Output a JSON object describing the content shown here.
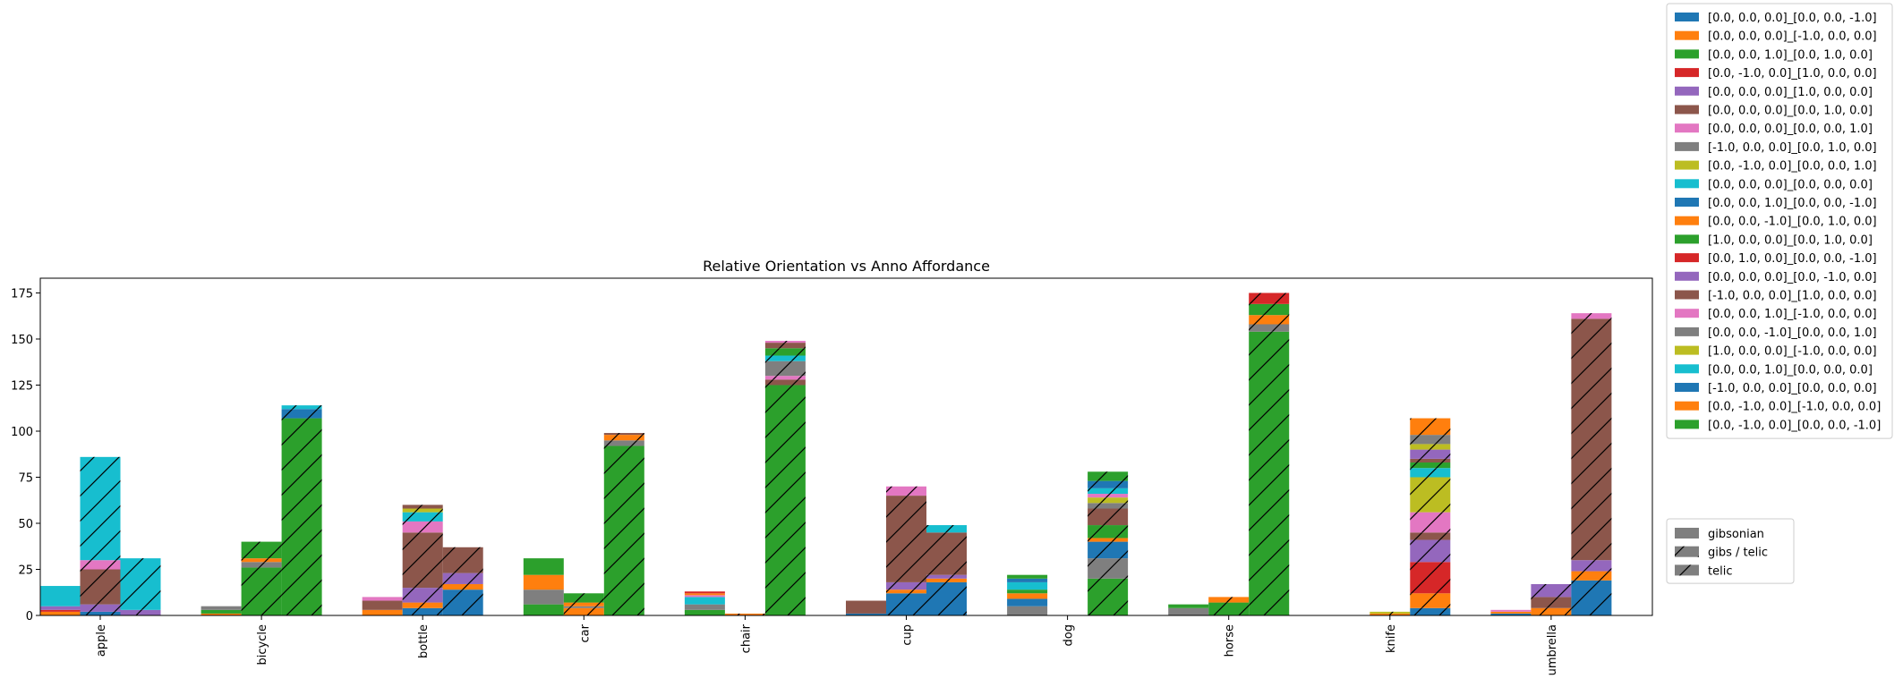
{
  "chart_data": {
    "type": "bar",
    "subtype": "stacked-grouped",
    "title": "Relative Orientation vs Anno Affordance",
    "xlabel": "",
    "ylabel": "",
    "ylim": [
      0,
      183
    ],
    "yticks": [
      0,
      25,
      50,
      75,
      100,
      125,
      150,
      175
    ],
    "categories": [
      "apple",
      "bicycle",
      "bottle",
      "car",
      "chair",
      "cup",
      "dog",
      "horse",
      "knife",
      "umbrella"
    ],
    "groups": [
      {
        "name": "gibsonian",
        "pattern": "none"
      },
      {
        "name": "gibs / telic",
        "pattern": "hatch"
      },
      {
        "name": "telic",
        "pattern": "hatch"
      }
    ],
    "orientation_legend": [
      {
        "label": "[0.0, 0.0, 0.0]_[0.0, 0.0, -1.0]",
        "color": "#1f77b4"
      },
      {
        "label": "[0.0, 0.0, 0.0]_[-1.0, 0.0, 0.0]",
        "color": "#ff7f0e"
      },
      {
        "label": "[0.0, 0.0, 1.0]_[0.0, 1.0, 0.0]",
        "color": "#2ca02c"
      },
      {
        "label": "[0.0, -1.0, 0.0]_[1.0, 0.0, 0.0]",
        "color": "#d62728"
      },
      {
        "label": "[0.0, 0.0, 0.0]_[1.0, 0.0, 0.0]",
        "color": "#9467bd"
      },
      {
        "label": "[0.0, 0.0, 0.0]_[0.0, 1.0, 0.0]",
        "color": "#8c564b"
      },
      {
        "label": "[0.0, 0.0, 0.0]_[0.0, 0.0, 1.0]",
        "color": "#e377c2"
      },
      {
        "label": "[-1.0, 0.0, 0.0]_[0.0, 1.0, 0.0]",
        "color": "#7f7f7f"
      },
      {
        "label": "[0.0, -1.0, 0.0]_[0.0, 0.0, 1.0]",
        "color": "#bcbd22"
      },
      {
        "label": "[0.0, 0.0, 0.0]_[0.0, 0.0, 0.0]",
        "color": "#17becf"
      },
      {
        "label": "[0.0, 0.0, 1.0]_[0.0, 0.0, -1.0]",
        "color": "#1f77b4"
      },
      {
        "label": "[0.0, 0.0, -1.0]_[0.0, 1.0, 0.0]",
        "color": "#ff7f0e"
      },
      {
        "label": "[1.0, 0.0, 0.0]_[0.0, 1.0, 0.0]",
        "color": "#2ca02c"
      },
      {
        "label": "[0.0, 1.0, 0.0]_[0.0, 0.0, -1.0]",
        "color": "#d62728"
      },
      {
        "label": "[0.0, 0.0, 0.0]_[0.0, -1.0, 0.0]",
        "color": "#9467bd"
      },
      {
        "label": "[-1.0, 0.0, 0.0]_[1.0, 0.0, 0.0]",
        "color": "#8c564b"
      },
      {
        "label": "[0.0, 0.0, 1.0]_[-1.0, 0.0, 0.0]",
        "color": "#e377c2"
      },
      {
        "label": "[0.0, 0.0, -1.0]_[0.0, 0.0, 1.0]",
        "color": "#7f7f7f"
      },
      {
        "label": "[1.0, 0.0, 0.0]_[-1.0, 0.0, 0.0]",
        "color": "#bcbd22"
      },
      {
        "label": "[0.0, 0.0, 1.0]_[0.0, 0.0, 0.0]",
        "color": "#17becf"
      },
      {
        "label": "[-1.0, 0.0, 0.0]_[0.0, 0.0, 0.0]",
        "color": "#1f77b4"
      },
      {
        "label": "[0.0, -1.0, 0.0]_[-1.0, 0.0, 0.0]",
        "color": "#ff7f0e"
      },
      {
        "label": "[0.0, -1.0, 0.0]_[0.0, 0.0, -1.0]",
        "color": "#2ca02c"
      }
    ],
    "stacks": [
      [
        [
          {
            "o": 1,
            "v": 2
          },
          {
            "o": 3,
            "v": 1
          },
          {
            "o": 4,
            "v": 2
          },
          {
            "o": 9,
            "v": 11
          }
        ],
        [
          {
            "o": 0,
            "v": 2
          },
          {
            "o": 4,
            "v": 4
          },
          {
            "o": 5,
            "v": 19
          },
          {
            "o": 6,
            "v": 5
          },
          {
            "o": 9,
            "v": 56
          }
        ],
        [
          {
            "o": 4,
            "v": 3
          },
          {
            "o": 9,
            "v": 28
          }
        ]
      ],
      [
        [
          {
            "o": 1,
            "v": 1
          },
          {
            "o": 2,
            "v": 2
          },
          {
            "o": 7,
            "v": 2
          }
        ],
        [
          {
            "o": 2,
            "v": 26
          },
          {
            "o": 7,
            "v": 3
          },
          {
            "o": 1,
            "v": 2
          },
          {
            "o": 2,
            "v": 9
          }
        ],
        [
          {
            "o": 2,
            "v": 107
          },
          {
            "o": 0,
            "v": 5
          },
          {
            "o": 9,
            "v": 2
          }
        ]
      ],
      [
        [
          {
            "o": 1,
            "v": 3
          },
          {
            "o": 5,
            "v": 5
          },
          {
            "o": 6,
            "v": 2
          }
        ],
        [
          {
            "o": 0,
            "v": 4
          },
          {
            "o": 1,
            "v": 3
          },
          {
            "o": 4,
            "v": 8
          },
          {
            "o": 5,
            "v": 30
          },
          {
            "o": 6,
            "v": 6
          },
          {
            "o": 9,
            "v": 5
          },
          {
            "o": 8,
            "v": 2
          },
          {
            "o": 5,
            "v": 2
          }
        ],
        [
          {
            "o": 0,
            "v": 14
          },
          {
            "o": 1,
            "v": 3
          },
          {
            "o": 4,
            "v": 6
          },
          {
            "o": 5,
            "v": 14
          }
        ]
      ],
      [
        [
          {
            "o": 2,
            "v": 6
          },
          {
            "o": 7,
            "v": 8
          },
          {
            "o": 1,
            "v": 8
          },
          {
            "o": 2,
            "v": 9
          }
        ],
        [
          {
            "o": 1,
            "v": 4
          },
          {
            "o": 7,
            "v": 1
          },
          {
            "o": 1,
            "v": 2
          },
          {
            "o": 2,
            "v": 5
          }
        ],
        [
          {
            "o": 2,
            "v": 92
          },
          {
            "o": 7,
            "v": 3
          },
          {
            "o": 1,
            "v": 3
          },
          {
            "o": 5,
            "v": 1
          }
        ]
      ],
      [
        [
          {
            "o": 2,
            "v": 3
          },
          {
            "o": 7,
            "v": 3
          },
          {
            "o": 9,
            "v": 4
          },
          {
            "o": 6,
            "v": 1
          },
          {
            "o": 1,
            "v": 1
          },
          {
            "o": 3,
            "v": 1
          }
        ],
        [
          {
            "o": 1,
            "v": 1
          }
        ],
        [
          {
            "o": 2,
            "v": 125
          },
          {
            "o": 5,
            "v": 3
          },
          {
            "o": 6,
            "v": 2
          },
          {
            "o": 7,
            "v": 8
          },
          {
            "o": 9,
            "v": 3
          },
          {
            "o": 2,
            "v": 4
          },
          {
            "o": 5,
            "v": 3
          },
          {
            "o": 6,
            "v": 1
          }
        ]
      ],
      [
        [
          {
            "o": 0,
            "v": 1
          },
          {
            "o": 5,
            "v": 7
          }
        ],
        [
          {
            "o": 0,
            "v": 12
          },
          {
            "o": 1,
            "v": 2
          },
          {
            "o": 4,
            "v": 4
          },
          {
            "o": 5,
            "v": 47
          },
          {
            "o": 6,
            "v": 5
          }
        ],
        [
          {
            "o": 0,
            "v": 18
          },
          {
            "o": 1,
            "v": 2
          },
          {
            "o": 4,
            "v": 2
          },
          {
            "o": 5,
            "v": 23
          },
          {
            "o": 9,
            "v": 4
          }
        ]
      ],
      [
        [
          {
            "o": 7,
            "v": 5
          },
          {
            "o": 0,
            "v": 4
          },
          {
            "o": 1,
            "v": 3
          },
          {
            "o": 2,
            "v": 2
          },
          {
            "o": 9,
            "v": 4
          },
          {
            "o": 0,
            "v": 2
          },
          {
            "o": 2,
            "v": 2
          }
        ],
        [],
        [
          {
            "o": 2,
            "v": 20
          },
          {
            "o": 7,
            "v": 11
          },
          {
            "o": 0,
            "v": 9
          },
          {
            "o": 1,
            "v": 2
          },
          {
            "o": 2,
            "v": 7
          },
          {
            "o": 5,
            "v": 9
          },
          {
            "o": 7,
            "v": 3
          },
          {
            "o": 8,
            "v": 3
          },
          {
            "o": 6,
            "v": 2
          },
          {
            "o": 9,
            "v": 3
          },
          {
            "o": 0,
            "v": 4
          },
          {
            "o": 2,
            "v": 5
          }
        ]
      ],
      [
        [
          {
            "o": 7,
            "v": 4
          },
          {
            "o": 2,
            "v": 2
          }
        ],
        [
          {
            "o": 2,
            "v": 7
          },
          {
            "o": 1,
            "v": 3
          }
        ],
        [
          {
            "o": 2,
            "v": 154
          },
          {
            "o": 7,
            "v": 4
          },
          {
            "o": 1,
            "v": 5
          },
          {
            "o": 2,
            "v": 6
          },
          {
            "o": 3,
            "v": 6
          }
        ]
      ],
      [
        [],
        [
          {
            "o": 1,
            "v": 1
          },
          {
            "o": 8,
            "v": 1
          }
        ],
        [
          {
            "o": 0,
            "v": 4
          },
          {
            "o": 1,
            "v": 8
          },
          {
            "o": 3,
            "v": 17
          },
          {
            "o": 4,
            "v": 12
          },
          {
            "o": 5,
            "v": 4
          },
          {
            "o": 6,
            "v": 11
          },
          {
            "o": 8,
            "v": 19
          },
          {
            "o": 9,
            "v": 5
          },
          {
            "o": 2,
            "v": 3
          },
          {
            "o": 5,
            "v": 2
          },
          {
            "o": 4,
            "v": 5
          },
          {
            "o": 8,
            "v": 3
          },
          {
            "o": 7,
            "v": 5
          },
          {
            "o": 1,
            "v": 9
          }
        ]
      ],
      [
        [
          {
            "o": 0,
            "v": 1
          },
          {
            "o": 1,
            "v": 1
          },
          {
            "o": 6,
            "v": 1
          }
        ],
        [
          {
            "o": 1,
            "v": 4
          },
          {
            "o": 5,
            "v": 6
          },
          {
            "o": 4,
            "v": 7
          }
        ],
        [
          {
            "o": 0,
            "v": 19
          },
          {
            "o": 1,
            "v": 5
          },
          {
            "o": 4,
            "v": 6
          },
          {
            "o": 5,
            "v": 131
          },
          {
            "o": 6,
            "v": 3
          }
        ]
      ]
    ]
  }
}
